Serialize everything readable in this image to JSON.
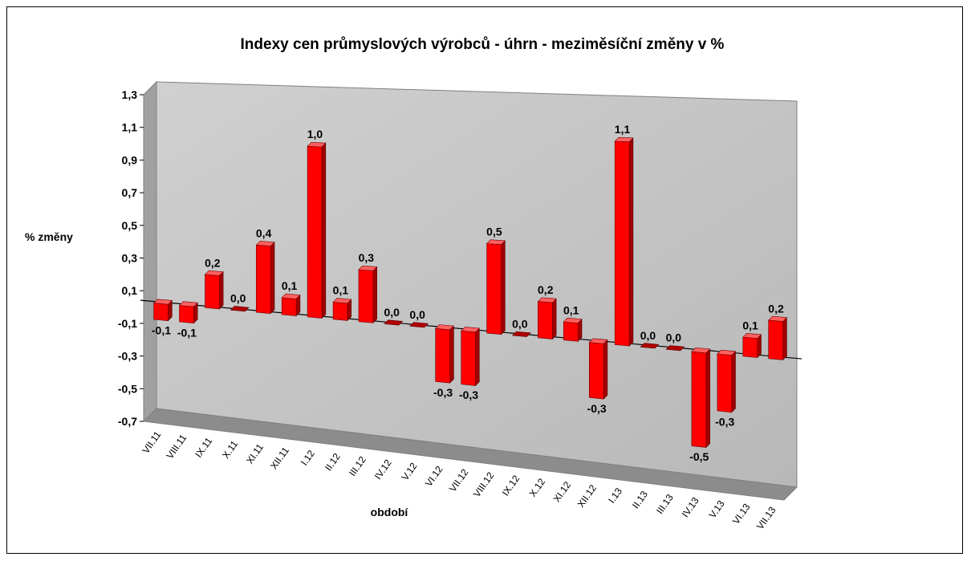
{
  "chart_data": {
    "type": "bar",
    "title": "Indexy cen průmyslových výrobců - úhrn - meziměsíční změny v %",
    "ylabel": "% změny",
    "xlabel": "období",
    "ylim": [
      -0.7,
      1.3
    ],
    "yticks": [
      "1,3",
      "1,1",
      "0,9",
      "0,7",
      "0,5",
      "0,3",
      "0,1",
      "-0,1",
      "-0,3",
      "-0,5",
      "-0,7"
    ],
    "categories": [
      "VII.11",
      "VIII.11",
      "IX.11",
      "X.11",
      "XI.11",
      "XII.11",
      "I.12",
      "II.12",
      "III.12",
      "IV.12",
      "V.12",
      "VI.12",
      "VII.12",
      "VIII.12",
      "IX.12",
      "X.12",
      "XI.12",
      "XII.12",
      "I.13",
      "II.13",
      "III.13",
      "IV.13",
      "V.13",
      "VI.13",
      "VII.13"
    ],
    "values": [
      -0.1,
      -0.1,
      0.2,
      0.0,
      0.4,
      0.1,
      1.0,
      0.1,
      0.3,
      0.0,
      0.0,
      -0.3,
      -0.3,
      0.5,
      0.0,
      0.2,
      0.1,
      -0.3,
      1.1,
      0.0,
      0.0,
      -0.5,
      -0.3,
      0.1,
      0.2
    ],
    "value_labels": [
      "-0,1",
      "-0,1",
      "0,2",
      "0,0",
      "0,4",
      "0,1",
      "1,0",
      "0,1",
      "0,3",
      "0,0",
      "0,0",
      "-0,3",
      "-0,3",
      "0,5",
      "0,0",
      "0,2",
      "0,1",
      "-0,3",
      "1,1",
      "0,0",
      "0,0",
      "-0,5",
      "-0,3",
      "0,1",
      "0,2"
    ],
    "series": [
      {
        "values": [
          -0.1,
          -0.1,
          0.2,
          0.0,
          0.4,
          0.1,
          1.0,
          0.1,
          0.3,
          0.0,
          0.0,
          -0.3,
          -0.3,
          0.5,
          0.0,
          0.2,
          0.1,
          -0.3,
          1.1,
          0.0,
          0.0,
          -0.5,
          -0.3,
          0.1,
          0.2
        ]
      }
    ],
    "bar_color": "#ff0000",
    "wall_color": "#c0c0c0",
    "grid": false,
    "legend": "none",
    "style": "3d-column"
  }
}
